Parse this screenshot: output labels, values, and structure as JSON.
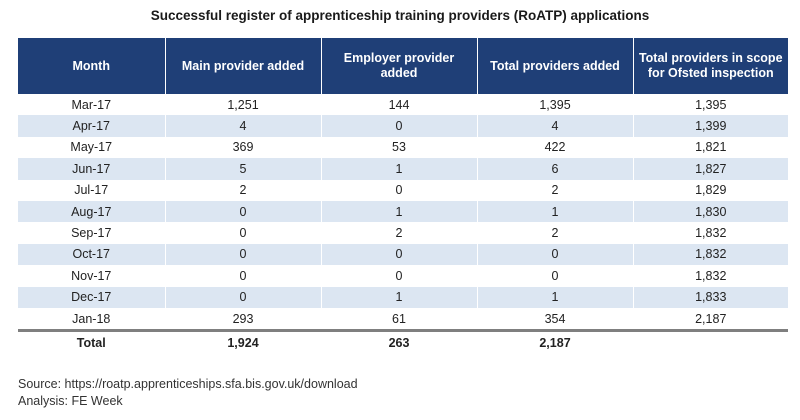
{
  "title": "Successful register of apprenticeship training providers (RoATP) applications",
  "headers": [
    "Month",
    "Main provider added",
    "Employer provider added",
    "Total providers added",
    "Total providers in scope for Ofsted inspection"
  ],
  "rows": [
    [
      "Mar-17",
      "1,251",
      "144",
      "1,395",
      "1,395"
    ],
    [
      "Apr-17",
      "4",
      "0",
      "4",
      "1,399"
    ],
    [
      "May-17",
      "369",
      "53",
      "422",
      "1,821"
    ],
    [
      "Jun-17",
      "5",
      "1",
      "6",
      "1,827"
    ],
    [
      "Jul-17",
      "2",
      "0",
      "2",
      "1,829"
    ],
    [
      "Aug-17",
      "0",
      "1",
      "1",
      "1,830"
    ],
    [
      "Sep-17",
      "0",
      "2",
      "2",
      "1,832"
    ],
    [
      "Oct-17",
      "0",
      "0",
      "0",
      "1,832"
    ],
    [
      "Nov-17",
      "0",
      "0",
      "0",
      "1,832"
    ],
    [
      "Dec-17",
      "0",
      "1",
      "1",
      "1,833"
    ],
    [
      "Jan-18",
      "293",
      "61",
      "354",
      "2,187"
    ]
  ],
  "total": [
    "Total",
    "1,924",
    "263",
    "2,187",
    ""
  ],
  "footer": {
    "source": "Source: https://roatp.apprenticeships.sfa.bis.gov.uk/download",
    "analysis": "Analysis: FE Week"
  },
  "colors": {
    "header_bg": "#1f3f77",
    "header_text": "#ffffff",
    "stripe": "#dce6f2",
    "rule": "#7f7f7f"
  }
}
